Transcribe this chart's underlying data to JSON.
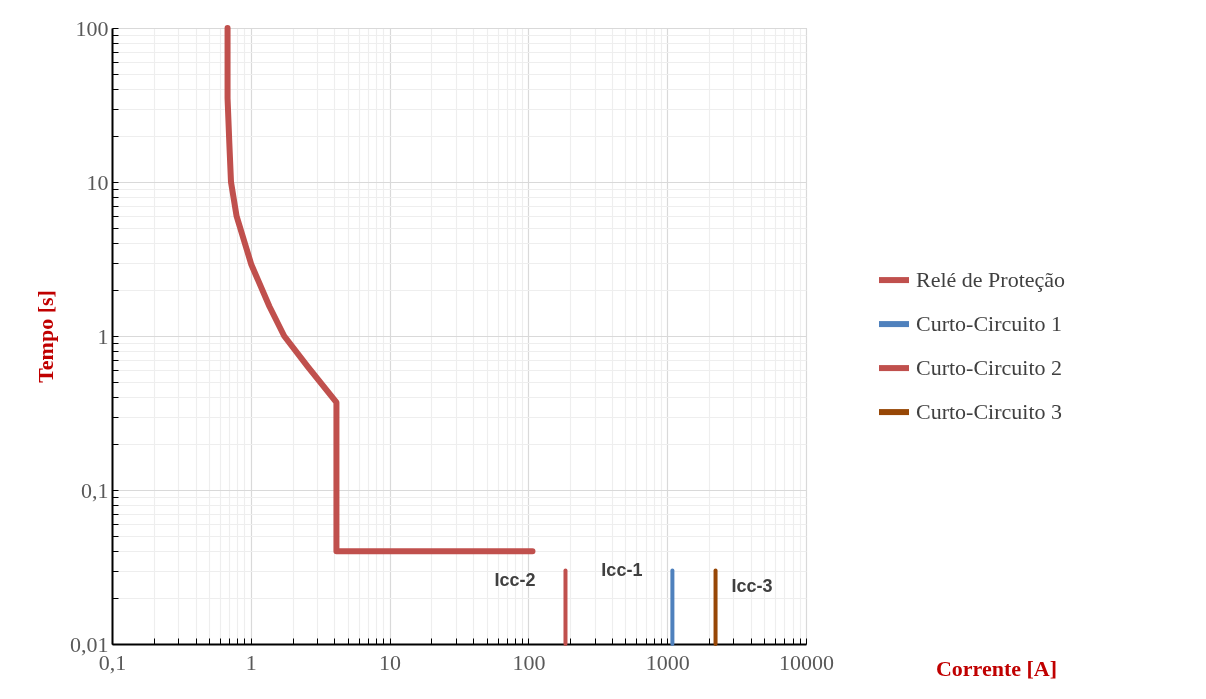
{
  "chart_data": {
    "type": "line",
    "xlabel": "Corrente [A]",
    "ylabel": "Tempo [s]",
    "log": "xy",
    "grid": true,
    "legend": "right",
    "marker": "none",
    "line_style": "solid",
    "xlim": [
      0.1,
      10000
    ],
    "ylim": [
      0.01,
      100
    ],
    "xticks": [
      {
        "value": 0.1,
        "label": "0,1"
      },
      {
        "value": 0.2,
        "label": null
      },
      {
        "value": 0.3,
        "label": null
      },
      {
        "value": 0.4,
        "label": null
      },
      {
        "value": 0.5,
        "label": null
      },
      {
        "value": 0.6,
        "label": null
      },
      {
        "value": 0.7,
        "label": null
      },
      {
        "value": 0.8,
        "label": null
      },
      {
        "value": 0.9,
        "label": null
      },
      1,
      {
        "value": 2,
        "label": null
      },
      {
        "value": 3,
        "label": null
      },
      {
        "value": 4,
        "label": null
      },
      {
        "value": 5,
        "label": null
      },
      {
        "value": 6,
        "label": null
      },
      {
        "value": 7,
        "label": null
      },
      {
        "value": 8,
        "label": null
      },
      {
        "value": 9,
        "label": null
      },
      10,
      {
        "value": 20,
        "label": null
      },
      {
        "value": 30,
        "label": null
      },
      {
        "value": 40,
        "label": null
      },
      {
        "value": 50,
        "label": null
      },
      {
        "value": 60,
        "label": null
      },
      {
        "value": 70,
        "label": null
      },
      {
        "value": 80,
        "label": null
      },
      {
        "value": 90,
        "label": null
      },
      100,
      {
        "value": 200,
        "label": null
      },
      {
        "value": 300,
        "label": null
      },
      {
        "value": 400,
        "label": null
      },
      {
        "value": 500,
        "label": null
      },
      {
        "value": 600,
        "label": null
      },
      {
        "value": 700,
        "label": null
      },
      {
        "value": 800,
        "label": null
      },
      {
        "value": 900,
        "label": null
      },
      1000,
      {
        "value": 2000,
        "label": null
      },
      {
        "value": 3000,
        "label": null
      },
      {
        "value": 4000,
        "label": null
      },
      {
        "value": 5000,
        "label": null
      },
      {
        "value": 6000,
        "label": null
      },
      {
        "value": 7000,
        "label": null
      },
      {
        "value": 8000,
        "label": null
      },
      {
        "value": 9000,
        "label": null
      },
      10000
    ],
    "yticks": [
      {
        "value": 0.01,
        "label": "0,01"
      },
      {
        "value": 0.02,
        "label": null
      },
      {
        "value": 0.03,
        "label": null
      },
      {
        "value": 0.04,
        "label": null
      },
      {
        "value": 0.05,
        "label": null
      },
      {
        "value": 0.06,
        "label": null
      },
      {
        "value": 0.07,
        "label": null
      },
      {
        "value": 0.08,
        "label": null
      },
      {
        "value": 0.09,
        "label": null
      },
      {
        "value": 0.1,
        "label": "0,1"
      },
      {
        "value": 0.2,
        "label": null
      },
      {
        "value": 0.3,
        "label": null
      },
      {
        "value": 0.4,
        "label": null
      },
      {
        "value": 0.5,
        "label": null
      },
      {
        "value": 0.6,
        "label": null
      },
      {
        "value": 0.7,
        "label": null
      },
      {
        "value": 0.8,
        "label": null
      },
      {
        "value": 0.9,
        "label": null
      },
      1,
      {
        "value": 2,
        "label": null
      },
      {
        "value": 3,
        "label": null
      },
      {
        "value": 4,
        "label": null
      },
      {
        "value": 5,
        "label": null
      },
      {
        "value": 6,
        "label": null
      },
      {
        "value": 7,
        "label": null
      },
      {
        "value": 8,
        "label": null
      },
      {
        "value": 9,
        "label": null
      },
      10,
      {
        "value": 20,
        "label": null
      },
      {
        "value": 30,
        "label": null
      },
      {
        "value": 40,
        "label": null
      },
      {
        "value": 50,
        "label": null
      },
      {
        "value": 60,
        "label": null
      },
      {
        "value": 70,
        "label": null
      },
      {
        "value": 80,
        "label": null
      },
      {
        "value": 90,
        "label": null
      },
      100
    ],
    "series": [
      {
        "name": "Relé de Proteção",
        "color": "#c0504d",
        "x": [
          0.68,
          0.68,
          0.7,
          0.72,
          0.79,
          1.01,
          1.36,
          1.74,
          2.58,
          4.14,
          4.14,
          107
        ],
        "values": [
          100,
          35,
          18,
          10,
          6.0,
          2.9,
          1.56,
          1,
          0.63,
          0.37,
          0.04,
          0.04
        ]
      },
      {
        "name": "Curto-Circuito 1",
        "color": "#4f81bd",
        "x": [
          1090,
          1090
        ],
        "values": [
          0.01,
          0.03
        ]
      },
      {
        "name": "Curto-Circuito 2",
        "color": "#c0504d",
        "x": [
          185,
          185
        ],
        "values": [
          0.01,
          0.03
        ]
      },
      {
        "name": "Curto-Circuito 3",
        "color": "#974706",
        "x": [
          2230,
          2230
        ],
        "values": [
          0.01,
          0.03
        ]
      }
    ],
    "annotations": [
      {
        "text": "Icc-2",
        "x": 185,
        "y": 0.03
      },
      {
        "text": "Icc-1",
        "x": 1090,
        "y": 0.03
      },
      {
        "text": "Icc-3",
        "x": 2230,
        "y": 0.03
      }
    ]
  }
}
